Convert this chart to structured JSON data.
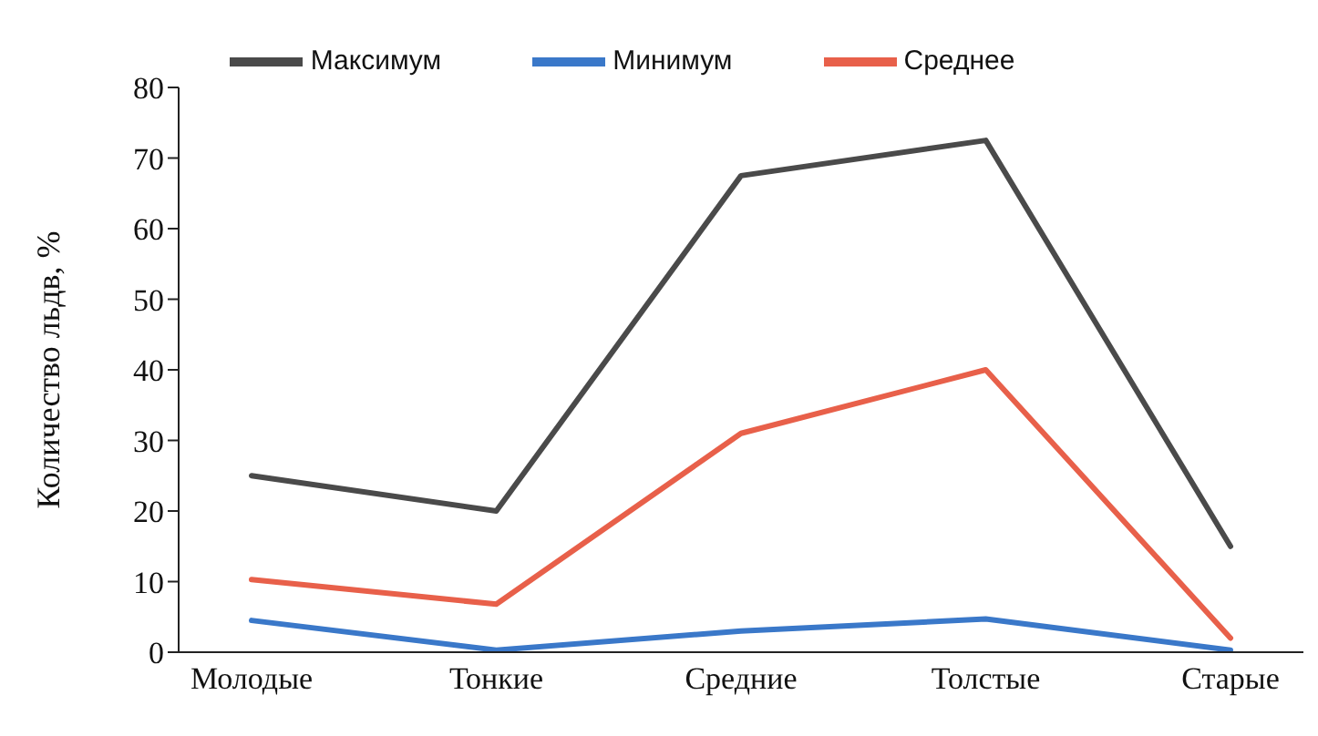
{
  "chart_data": {
    "type": "line",
    "ylabel": "Количество льдв, %",
    "categories": [
      "Молодые",
      "Тонкие",
      "Средние",
      "Толстые",
      "Старые"
    ],
    "series": [
      {
        "name": "Минимум",
        "color": "#3a78c9",
        "values": [
          4.5,
          0.3,
          3,
          4.7,
          0.3
        ]
      },
      {
        "name": "Среднее",
        "color": "#e8604a",
        "values": [
          10.3,
          6.8,
          31,
          40,
          2
        ]
      },
      {
        "name": "Максимум",
        "color": "#4a4a4a",
        "values": [
          25,
          20,
          67.5,
          72.5,
          15
        ]
      }
    ],
    "ylim": [
      0,
      80
    ],
    "yticks": [
      0,
      10,
      20,
      30,
      40,
      50,
      60,
      70,
      80
    ],
    "grid": false,
    "legend": "top",
    "marker": "none",
    "line_style": "solid"
  }
}
